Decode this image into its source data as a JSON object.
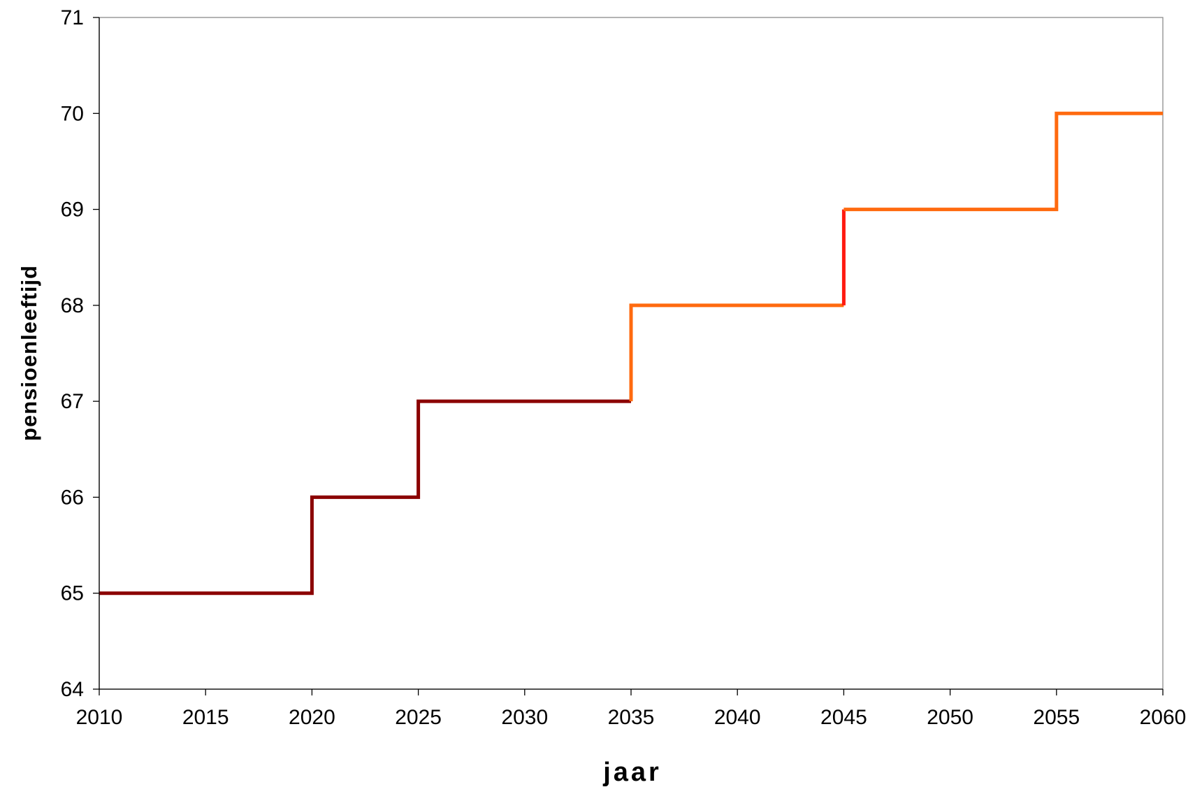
{
  "chart_data": {
    "type": "line",
    "title": "",
    "xlabel": "jaar",
    "ylabel": "pensioenleeftijd",
    "xlim": [
      2010,
      2060
    ],
    "ylim": [
      64,
      71
    ],
    "x_ticks": [
      "2010",
      "2015",
      "2020",
      "2025",
      "2030",
      "2035",
      "2040",
      "2045",
      "2050",
      "2055",
      "2060"
    ],
    "y_ticks": [
      "64",
      "65",
      "66",
      "67",
      "68",
      "69",
      "70",
      "71"
    ],
    "grid": false,
    "legend": "none",
    "series": [
      {
        "color": "#8B0000",
        "step": true,
        "points": [
          [
            2010,
            65
          ],
          [
            2020,
            65
          ],
          [
            2020,
            66
          ],
          [
            2025,
            66
          ],
          [
            2025,
            67
          ],
          [
            2035,
            67
          ]
        ]
      },
      {
        "color": "#FF6A0F",
        "step": true,
        "points": [
          [
            2035,
            67
          ],
          [
            2035,
            68
          ],
          [
            2045,
            68
          ]
        ]
      },
      {
        "color": "#FF1A10",
        "step": true,
        "points": [
          [
            2045,
            68
          ],
          [
            2045,
            69
          ]
        ]
      },
      {
        "color": "#FF6A0F",
        "step": true,
        "points": [
          [
            2045,
            69
          ],
          [
            2055,
            69
          ],
          [
            2055,
            70
          ],
          [
            2060,
            70
          ]
        ]
      }
    ]
  }
}
